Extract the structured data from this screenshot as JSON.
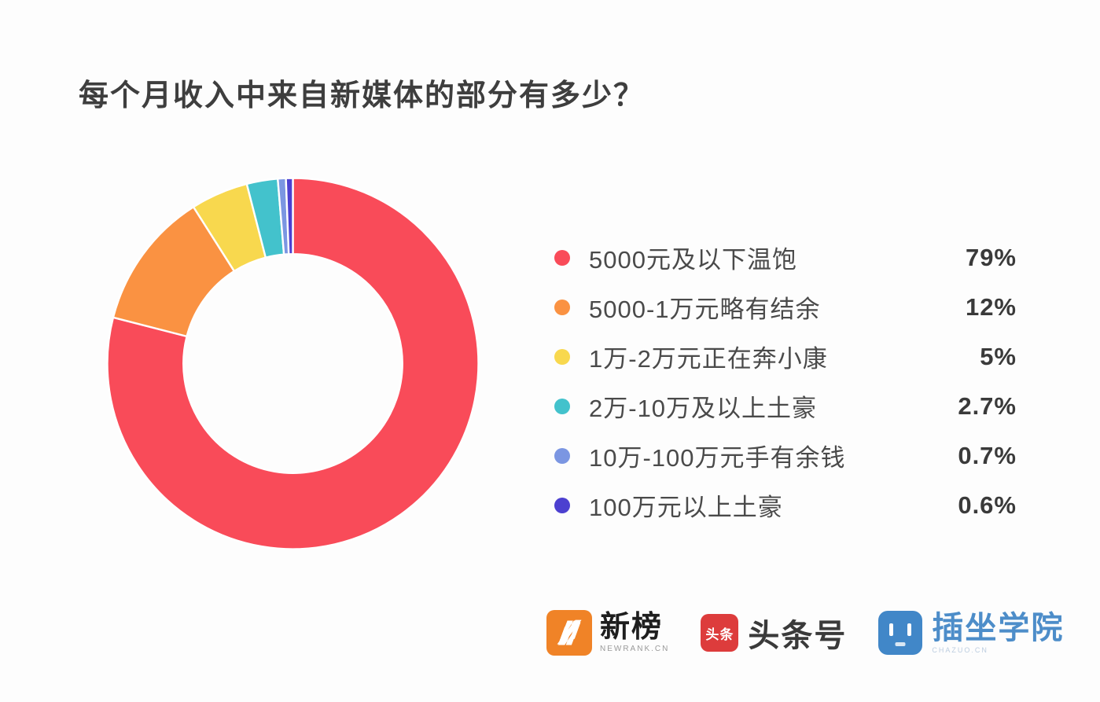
{
  "title": "每个月收入中来自新媒体的部分有多少？",
  "chart_data": {
    "type": "pie",
    "subtype": "donut",
    "title": "每个月收入中来自新媒体的部分有多少？",
    "categories": [
      "5000元及以下温饱",
      "5000-1万元略有结余",
      "1万-2万元正在奔小康",
      "2万-10万及以上土豪",
      "10万-100万元手有余钱",
      "100万元以上土豪"
    ],
    "values": [
      79,
      12,
      5,
      2.7,
      0.7,
      0.6
    ],
    "unit": "%",
    "colors": [
      "#f94b59",
      "#fa9242",
      "#f8d84e",
      "#43c2cc",
      "#7b96e2",
      "#4c40d0"
    ],
    "start_angle_deg": -90,
    "direction": "clockwise",
    "inner_radius_ratio": 0.59,
    "legend_position": "right",
    "slice_separator_color": "#ffffff"
  },
  "legend": {
    "items": [
      {
        "label": "5000元及以下温饱",
        "percent": "79%",
        "color": "#f94b59"
      },
      {
        "label": "5000-1万元略有结余",
        "percent": "12%",
        "color": "#fa9242"
      },
      {
        "label": "1万-2万元正在奔小康",
        "percent": "5%",
        "color": "#f8d84e"
      },
      {
        "label": "2万-10万及以上土豪",
        "percent": "2.7%",
        "color": "#43c2cc"
      },
      {
        "label": "10万-100万元手有余钱",
        "percent": "0.7%",
        "color": "#7b96e2"
      },
      {
        "label": "100万元以上土豪",
        "percent": "0.6%",
        "color": "#4c40d0"
      }
    ]
  },
  "footer": {
    "logos": [
      {
        "name": "新榜",
        "subtitle": "NEWRANK.CN",
        "icon": "newrank-n-icon",
        "color": "#f08327"
      },
      {
        "name": "头条号",
        "icon_text": "头条",
        "icon": "toutiao-icon",
        "color": "#dd3c3c"
      },
      {
        "name": "插坐学院",
        "subtitle": "CHAZUO.CN",
        "icon": "chazuo-robot-icon",
        "color": "#4187c8"
      }
    ]
  }
}
